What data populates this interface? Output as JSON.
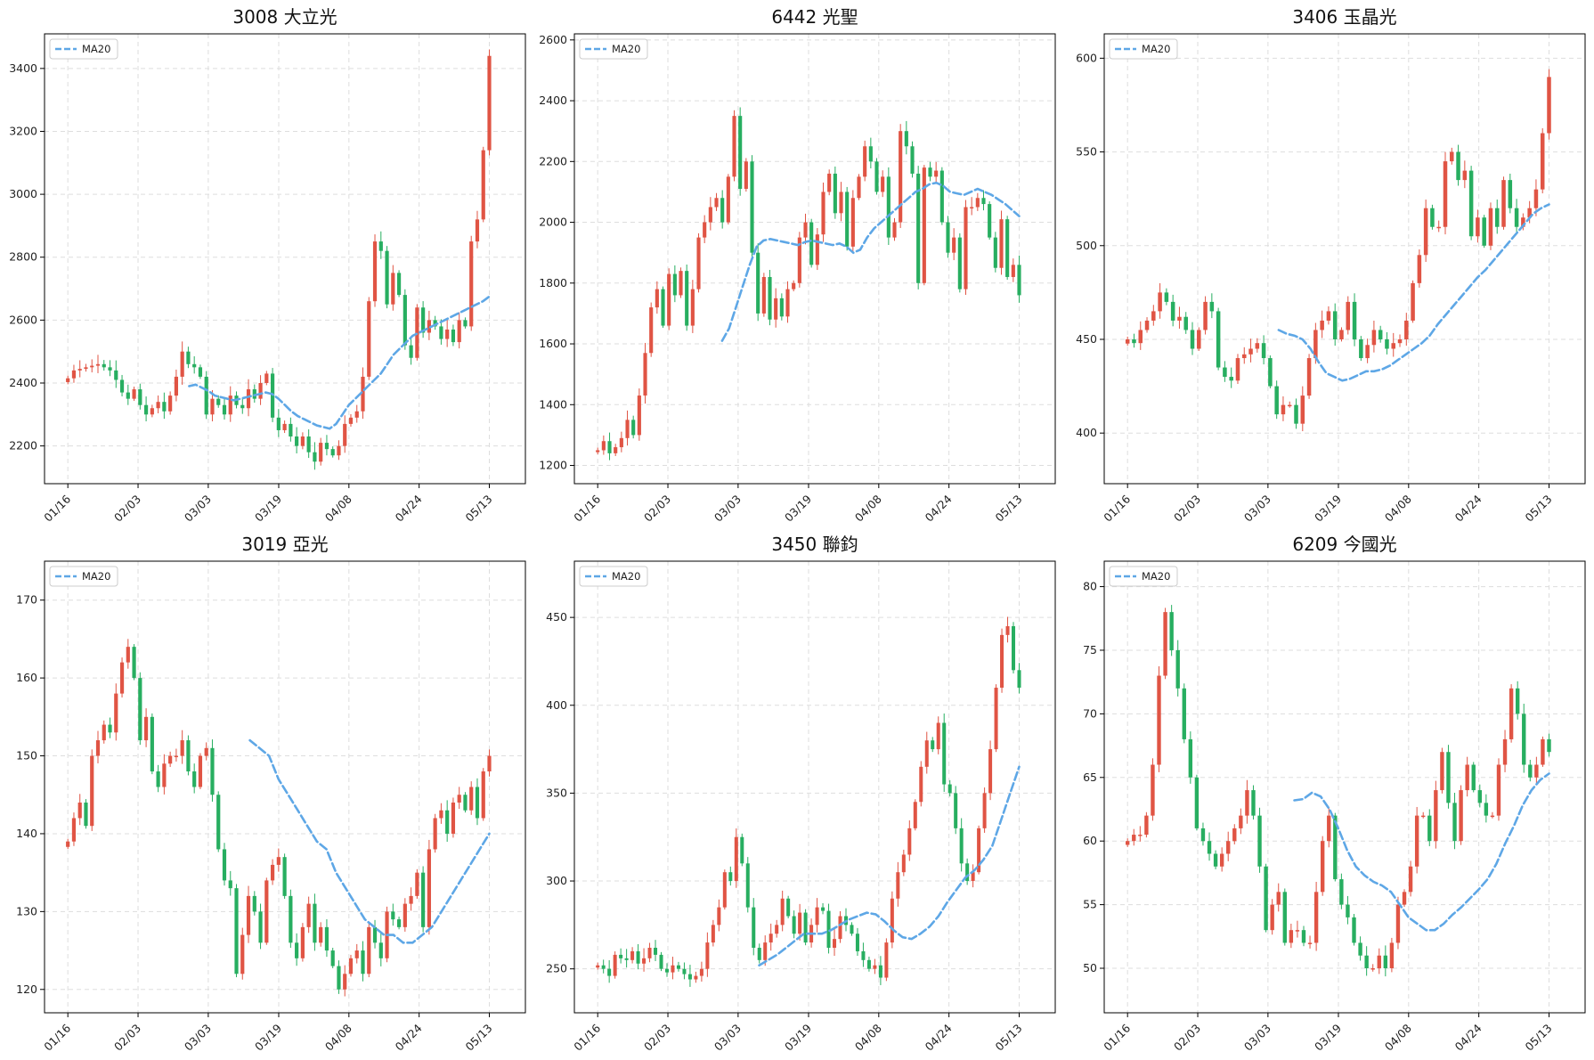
{
  "colors": {
    "up": "#e05444",
    "down": "#27ae60",
    "ma": "#5ea7e6",
    "grid": "#dddddd"
  },
  "x_ticks": [
    "01/16",
    "02/03",
    "03/03",
    "03/19",
    "04/08",
    "04/24",
    "05/13"
  ],
  "chart_data": [
    {
      "type": "candlestick",
      "title": "3008 大立光",
      "legend": [
        "MA20"
      ],
      "legend_position": "top-left",
      "grid": true,
      "ylim": [
        2080,
        3510
      ],
      "yticks": [
        2200,
        2400,
        2600,
        2800,
        3000,
        3200,
        3400
      ],
      "close": [
        2415,
        2440,
        2445,
        2450,
        2455,
        2460,
        2450,
        2440,
        2410,
        2370,
        2350,
        2380,
        2330,
        2300,
        2320,
        2340,
        2310,
        2360,
        2420,
        2500,
        2460,
        2450,
        2420,
        2300,
        2350,
        2330,
        2300,
        2360,
        2330,
        2320,
        2380,
        2350,
        2400,
        2430,
        2290,
        2250,
        2270,
        2230,
        2200,
        2230,
        2180,
        2150,
        2210,
        2190,
        2170,
        2200,
        2270,
        2290,
        2310,
        2420,
        2660,
        2850,
        2820,
        2650,
        2750,
        2680,
        2520,
        2480,
        2640,
        2560,
        2600,
        2580,
        2540,
        2570,
        2530,
        2600,
        2580,
        2850,
        2920,
        3140,
        3440
      ],
      "ma": [
        null,
        null,
        null,
        null,
        null,
        null,
        null,
        null,
        null,
        null,
        null,
        null,
        null,
        null,
        null,
        null,
        null,
        null,
        null,
        2390,
        2395,
        2385,
        2375,
        2360,
        2355,
        2350,
        2345,
        2350,
        2355,
        2360,
        2365,
        2370,
        2365,
        2350,
        2330,
        2310,
        2295,
        2285,
        2275,
        2265,
        2260,
        2255,
        2270,
        2300,
        2330,
        2350,
        2370,
        2390,
        2410,
        2430,
        2460,
        2490,
        2510,
        2530,
        2550,
        2560,
        2570,
        2580,
        2590,
        2600,
        2610,
        2620,
        2630,
        2640,
        2650,
        2660,
        2675
      ]
    },
    {
      "type": "candlestick",
      "title": "6442 光聖",
      "legend": [
        "MA20"
      ],
      "legend_position": "top-left",
      "grid": true,
      "ylim": [
        1140,
        2620
      ],
      "yticks": [
        1200,
        1400,
        1600,
        1800,
        2000,
        2200,
        2400,
        2600
      ],
      "close": [
        1250,
        1280,
        1240,
        1260,
        1290,
        1350,
        1300,
        1430,
        1570,
        1720,
        1780,
        1660,
        1830,
        1760,
        1840,
        1660,
        1780,
        1950,
        2000,
        2050,
        2080,
        2000,
        2150,
        2350,
        2110,
        2200,
        1900,
        1700,
        1820,
        1680,
        1750,
        1690,
        1780,
        1800,
        1950,
        2000,
        1860,
        1960,
        2100,
        2160,
        2030,
        2100,
        1920,
        2080,
        2150,
        2250,
        2200,
        2100,
        2150,
        1950,
        2000,
        2300,
        2250,
        2160,
        1800,
        2180,
        2150,
        2170,
        2000,
        1900,
        1950,
        1780,
        2050,
        2050,
        2080,
        2060,
        1950,
        1850,
        2010,
        1820,
        1860,
        1760
      ],
      "ma": [
        null,
        null,
        null,
        null,
        null,
        null,
        null,
        null,
        null,
        null,
        null,
        null,
        null,
        null,
        null,
        null,
        null,
        null,
        1610,
        1650,
        1720,
        1790,
        1860,
        1920,
        1940,
        1945,
        1940,
        1935,
        1930,
        1925,
        1935,
        1940,
        1935,
        1930,
        1925,
        1930,
        1920,
        1900,
        1910,
        1950,
        1980,
        2000,
        2020,
        2040,
        2060,
        2080,
        2100,
        2110,
        2125,
        2130,
        2120,
        2100,
        2095,
        2090,
        2100,
        2110,
        2100,
        2090,
        2075,
        2060,
        2040,
        2020
      ]
    },
    {
      "type": "candlestick",
      "title": "3406 玉晶光",
      "legend": [
        "MA20"
      ],
      "legend_position": "top-left",
      "grid": true,
      "ylim": [
        373,
        613
      ],
      "yticks": [
        400,
        450,
        500,
        550,
        600
      ],
      "close": [
        450,
        448,
        455,
        460,
        465,
        475,
        470,
        460,
        462,
        455,
        445,
        455,
        470,
        465,
        435,
        430,
        428,
        440,
        442,
        445,
        448,
        440,
        425,
        410,
        415,
        415,
        405,
        420,
        440,
        455,
        460,
        465,
        450,
        455,
        470,
        450,
        440,
        447,
        455,
        450,
        445,
        448,
        450,
        460,
        480,
        495,
        520,
        510,
        510,
        545,
        550,
        535,
        540,
        505,
        515,
        500,
        520,
        510,
        535,
        520,
        510,
        515,
        520,
        530,
        560,
        590
      ],
      "ma": [
        null,
        null,
        null,
        null,
        null,
        null,
        null,
        null,
        null,
        null,
        null,
        null,
        null,
        null,
        null,
        null,
        null,
        null,
        null,
        455,
        453,
        452,
        450,
        445,
        438,
        432,
        430,
        428,
        429,
        431,
        433,
        433,
        434,
        436,
        439,
        442,
        445,
        448,
        452,
        458,
        463,
        468,
        473,
        478,
        483,
        487,
        492,
        497,
        502,
        507,
        512,
        517,
        520,
        522
      ]
    },
    {
      "type": "candlestick",
      "title": "3019 亞光",
      "legend": [
        "MA20"
      ],
      "legend_position": "top-left",
      "grid": true,
      "ylim": [
        117,
        175
      ],
      "yticks": [
        120,
        130,
        140,
        150,
        160,
        170
      ],
      "close": [
        139,
        142,
        144,
        141,
        150,
        152,
        154,
        153,
        158,
        162,
        164,
        160,
        152,
        155,
        148,
        146,
        149,
        150,
        150,
        152,
        148,
        146,
        150,
        151,
        145,
        138,
        134,
        133,
        122,
        127,
        132,
        130,
        126,
        134,
        136,
        137,
        132,
        126,
        124,
        128,
        131,
        126,
        128,
        125,
        123,
        120,
        122,
        124,
        125,
        122,
        128,
        126,
        124,
        130,
        129,
        128,
        131,
        132,
        135,
        128,
        138,
        142,
        143,
        140,
        144,
        145,
        143,
        146,
        142,
        148,
        150
      ],
      "ma": [
        null,
        null,
        null,
        null,
        null,
        null,
        null,
        null,
        null,
        null,
        null,
        null,
        null,
        null,
        null,
        null,
        null,
        null,
        null,
        152,
        151,
        150,
        147,
        145,
        143,
        141,
        139,
        138,
        135,
        133,
        131,
        129,
        128,
        127,
        127,
        126,
        126,
        127,
        128,
        130,
        132,
        134,
        136,
        138,
        140
      ]
    },
    {
      "type": "candlestick",
      "title": "3450 聯鈞",
      "legend": [
        "MA20"
      ],
      "legend_position": "top-left",
      "grid": true,
      "ylim": [
        225,
        482
      ],
      "yticks": [
        250,
        300,
        350,
        400,
        450
      ],
      "close": [
        252,
        250,
        246,
        258,
        256,
        255,
        260,
        253,
        256,
        262,
        258,
        250,
        248,
        252,
        250,
        247,
        244,
        246,
        250,
        265,
        275,
        285,
        305,
        300,
        325,
        310,
        285,
        262,
        255,
        265,
        270,
        275,
        290,
        280,
        270,
        282,
        265,
        275,
        285,
        283,
        262,
        267,
        280,
        275,
        270,
        260,
        255,
        250,
        252,
        245,
        265,
        290,
        305,
        315,
        330,
        345,
        365,
        380,
        375,
        390,
        355,
        350,
        330,
        310,
        300,
        305,
        330,
        350,
        375,
        410,
        440,
        445,
        420,
        410
      ],
      "ma": [
        null,
        null,
        null,
        null,
        null,
        null,
        null,
        null,
        null,
        null,
        null,
        null,
        null,
        null,
        null,
        null,
        null,
        null,
        252,
        255,
        258,
        262,
        266,
        270,
        270,
        270,
        272,
        275,
        278,
        280,
        282,
        281,
        277,
        272,
        268,
        267,
        270,
        274,
        280,
        288,
        295,
        302,
        306,
        312,
        320,
        335,
        350,
        365
      ]
    },
    {
      "type": "candlestick",
      "title": "6209 今國光",
      "legend": [
        "MA20"
      ],
      "legend_position": "top-left",
      "grid": true,
      "ylim": [
        46.5,
        82
      ],
      "yticks": [
        50,
        55,
        60,
        65,
        70,
        75,
        80
      ],
      "close": [
        60,
        60.5,
        60.5,
        62,
        66,
        73,
        78,
        75,
        72,
        68,
        65,
        61,
        60,
        59,
        58,
        59,
        60,
        61,
        62,
        64,
        62,
        58,
        53,
        55,
        56,
        52,
        53,
        53,
        52,
        52,
        56,
        60,
        62,
        57,
        55,
        54,
        52,
        51,
        50,
        50,
        51,
        50,
        52,
        55,
        56,
        58,
        62,
        62,
        60,
        64,
        67,
        63,
        60,
        64,
        66,
        64,
        63,
        62,
        62,
        66,
        68,
        72,
        70,
        66,
        65,
        66,
        68,
        67
      ],
      "ma": [
        null,
        null,
        null,
        null,
        null,
        null,
        null,
        null,
        null,
        null,
        null,
        null,
        null,
        null,
        null,
        null,
        null,
        null,
        null,
        63.2,
        63.3,
        63.8,
        63.5,
        62.5,
        61.0,
        59.3,
        58.0,
        57.3,
        56.8,
        56.5,
        56.0,
        55.0,
        54.0,
        53.5,
        53.0,
        53.0,
        53.5,
        54.2,
        54.8,
        55.5,
        56.2,
        57.0,
        58.2,
        59.8,
        61.2,
        62.8,
        64.0,
        64.8,
        65.3
      ]
    }
  ]
}
